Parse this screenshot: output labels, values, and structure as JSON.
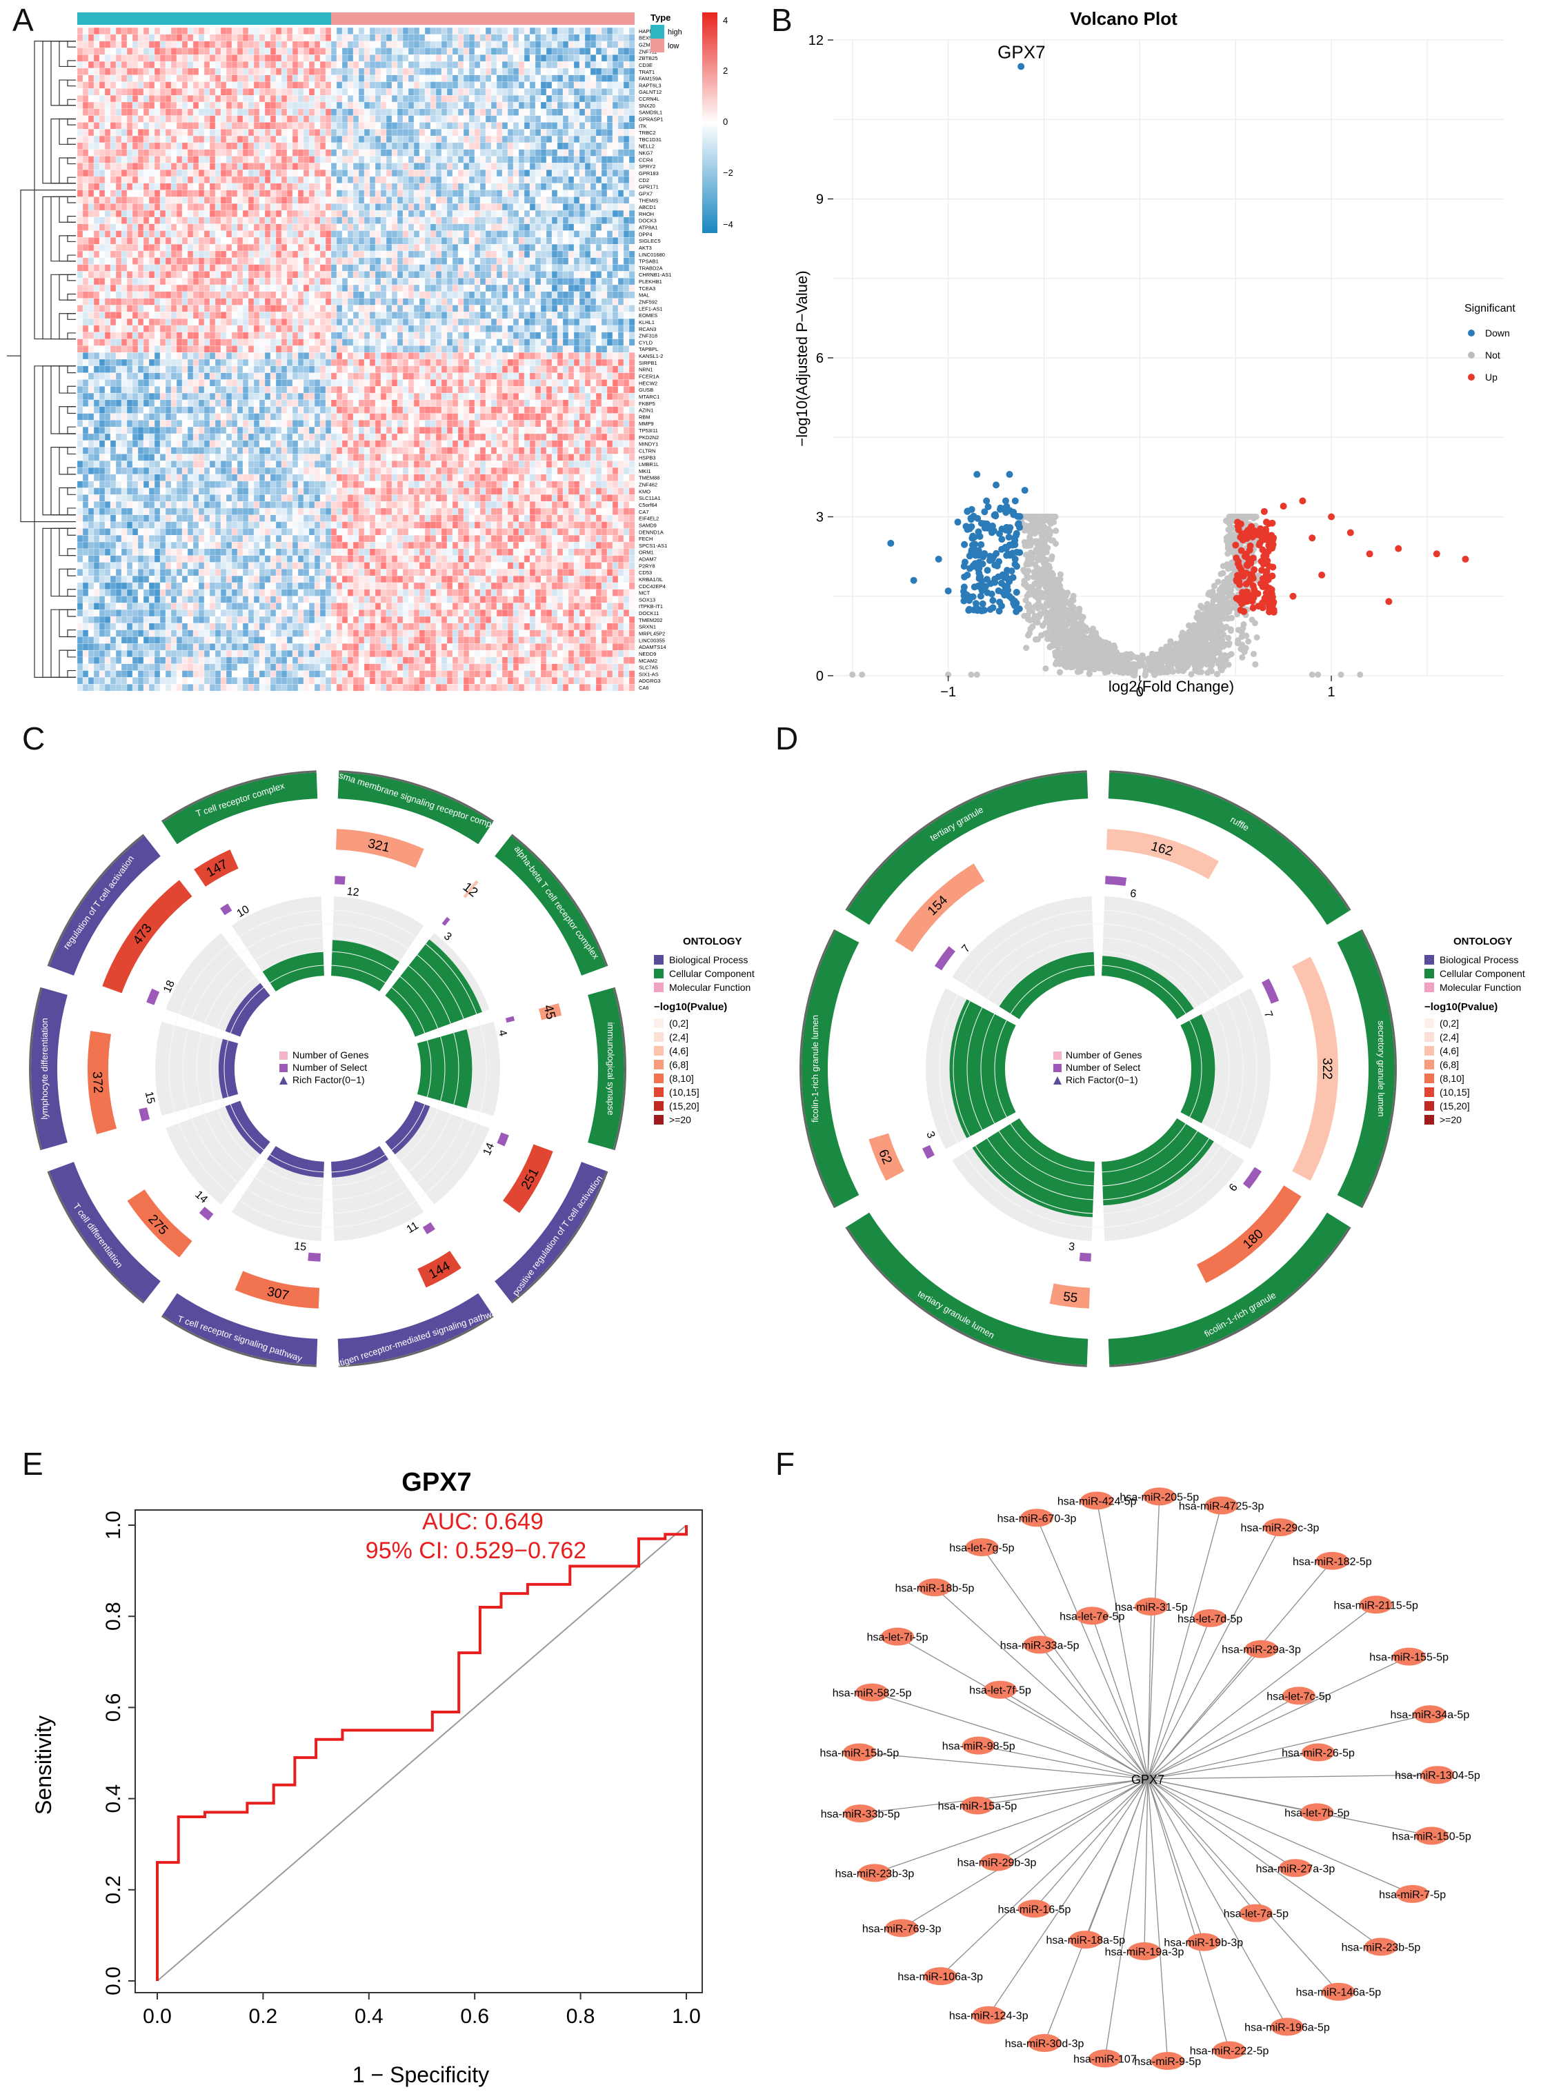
{
  "panels": {
    "A": "A",
    "B": "B",
    "C": "C",
    "D": "D",
    "E": "E",
    "F": "F"
  },
  "heatmap": {
    "legend_type_title": "Type",
    "type_labels": [
      "high",
      "low"
    ],
    "type_colors": {
      "high": "#2db7c4",
      "low": "#f19a9a"
    },
    "scale_ticks": [
      "4",
      "2",
      "0",
      "−2",
      "−4"
    ],
    "genes_top": [
      "HAPNA",
      "BEX5",
      "GZMH",
      "ZNF711",
      "ZBTB25",
      "CD3E",
      "TRAT1",
      "FAM159A",
      "RAPT6L3",
      "GALNT12",
      "CCRN4L",
      "SNX20",
      "SAMD9L1",
      "GPRASP1",
      "ITK",
      "TRBC2",
      "TBC1D31",
      "NELL2",
      "NKG7",
      "CCR4",
      "SPRY2",
      "GPR183",
      "CD2",
      "GPR171",
      "GPX7",
      "THEMIS",
      "ABCD1",
      "RHOH",
      "DOCK3",
      "ATP8A1",
      "DPP4",
      "SIGLEC5",
      "AKT3",
      "LINC01680",
      "TPSAB1",
      "TRABD2A",
      "CHRNB1-AS1",
      "PLEKHB1",
      "TCEA3",
      "MAL",
      "ZNF592",
      "LEF1-AS1",
      "EOMES",
      "KLHL1",
      "RCAN3",
      "ZNF318",
      "CYLD",
      "TAPBPL"
    ],
    "genes_bottom": [
      "KANSL1-2",
      "SIRPB1",
      "NRN1",
      "FCER1A",
      "HECW2",
      "GUSB",
      "MTARC1",
      "FKBP5",
      "AZIN1",
      "RBM",
      "MMP9",
      "TP53I11",
      "PKD2N2",
      "MINDY1",
      "CLTRN",
      "HSPB3",
      "LMBR1L",
      "MKI1",
      "TMEM88",
      "ZNF462",
      "KMO",
      "SLC11A1",
      "C5orf64",
      "CA7",
      "EIF4EL2",
      "SAMD9",
      "DENND1A",
      "FECH",
      "SPCS1-AS1",
      "ORM1",
      "ADAM7",
      "P2RY8",
      "CD53",
      "KRBA1/3L",
      "CDC42EP4",
      "MCT",
      "SOX13",
      "ITPKB-IT1",
      "DOCK11",
      "TMEM202",
      "SRXN1",
      "MRPL45P2",
      "LINC00355",
      "ADAMTS14",
      "NEDD9",
      "MCAM2",
      "SLC7A5",
      "SIX1-AS",
      "ADGRG3",
      "CA6"
    ]
  },
  "volcano": {
    "chart_data": {
      "type": "scatter",
      "title": "Volcano Plot",
      "xlabel": "log2(Fold Change)",
      "ylabel": "−log10(Adjusted P−Value)",
      "xlim": [
        -1.6,
        1.9
      ],
      "ylim": [
        0,
        12
      ],
      "xticks": [
        "−1",
        "0",
        "1"
      ],
      "yticks": [
        "0",
        "3",
        "6",
        "9",
        "12"
      ],
      "legend_title": "Significant",
      "legend": [
        {
          "label": "Down",
          "color": "#2b7bb9"
        },
        {
          "label": "Not",
          "color": "#bdbdbd"
        },
        {
          "label": "Up",
          "color": "#e8382b"
        }
      ],
      "annotation": {
        "label": "GPX7",
        "x": -0.62,
        "y": 11.5
      },
      "down_points": [
        [
          -0.62,
          11.5
        ],
        [
          -1.3,
          2.5
        ],
        [
          -1.18,
          1.8
        ],
        [
          -0.95,
          2.9
        ],
        [
          -0.9,
          3.1
        ],
        [
          -0.85,
          3.8
        ],
        [
          -0.8,
          3.3
        ],
        [
          -0.75,
          3.6
        ],
        [
          -0.7,
          3.3
        ],
        [
          -0.68,
          3.8
        ],
        [
          -0.65,
          3.3
        ],
        [
          -0.6,
          3.5
        ],
        [
          -1.0,
          1.6
        ],
        [
          -0.9,
          1.9
        ],
        [
          -1.05,
          2.2
        ]
      ],
      "up_points": [
        [
          1.0,
          3.0
        ],
        [
          1.1,
          2.7
        ],
        [
          1.2,
          2.3
        ],
        [
          1.35,
          2.4
        ],
        [
          1.55,
          2.3
        ],
        [
          1.7,
          2.2
        ],
        [
          1.3,
          1.4
        ],
        [
          0.85,
          3.3
        ],
        [
          0.75,
          3.2
        ],
        [
          0.65,
          3.1
        ],
        [
          0.9,
          2.6
        ],
        [
          0.95,
          1.9
        ],
        [
          0.8,
          1.5
        ],
        [
          0.7,
          1.2
        ]
      ]
    }
  },
  "circos_c": {
    "legend_title": "ONTOLOGY",
    "legend_items": [
      {
        "label": "Biological Process",
        "color": "#5a4b9c"
      },
      {
        "label": "Cellular Component",
        "color": "#1a8a43"
      },
      {
        "label": "Molecular Function",
        "color": "#f2a2c1"
      }
    ],
    "pvalue_title": "−log10(Pvalue)",
    "pvalue_items": [
      "(0,2]",
      "(2,4]",
      "(4,6]",
      "(6,8]",
      "(8,10]",
      "(10,15]",
      "(15,20]",
      ">=20"
    ],
    "pvalue_colors": [
      "#fdf0ec",
      "#fde0d6",
      "#fcc4ae",
      "#f99b7d",
      "#f2734f",
      "#e04632",
      "#c02a22",
      "#a01c1c"
    ],
    "center_legend": [
      "Number of Genes",
      "Number of Select",
      "Rich Factor(0−1)"
    ],
    "sectors": [
      {
        "term": "plasma membrane signaling receptor complex",
        "ontology": "CC",
        "genes": 321,
        "select": 12,
        "rich": 0.45,
        "pclass": 3
      },
      {
        "term": "alpha-beta T cell receptor complex",
        "ontology": "CC",
        "genes": 12,
        "select": 3,
        "rich": 0.9,
        "pclass": 2
      },
      {
        "term": "immunological synapse",
        "ontology": "CC",
        "genes": 45,
        "select": 4,
        "rich": 0.65,
        "pclass": 3
      },
      {
        "term": "positive regulation of T cell activation",
        "ontology": "BP",
        "genes": 251,
        "select": 14,
        "rich": 0.2,
        "pclass": 5
      },
      {
        "term": "antigen receptor-mediated signaling pathway",
        "ontology": "BP",
        "genes": 144,
        "select": 11,
        "rich": 0.2,
        "pclass": 5
      },
      {
        "term": "T cell receptor signaling pathway",
        "ontology": "BP",
        "genes": 307,
        "select": 15,
        "rich": 0.2,
        "pclass": 4
      },
      {
        "term": "T cell differentiation",
        "ontology": "BP",
        "genes": 275,
        "select": 14,
        "rich": 0.2,
        "pclass": 4
      },
      {
        "term": "lymphocyte differentiation",
        "ontology": "BP",
        "genes": 372,
        "select": 15,
        "rich": 0.2,
        "pclass": 4
      },
      {
        "term": "regulation of T cell activation",
        "ontology": "BP",
        "genes": 473,
        "select": 18,
        "rich": 0.2,
        "pclass": 5
      },
      {
        "term": "T cell receptor complex",
        "ontology": "CC",
        "genes": 147,
        "select": 10,
        "rich": 0.3,
        "pclass": 5
      }
    ]
  },
  "circos_d": {
    "legend_title": "ONTOLOGY",
    "legend_items": [
      {
        "label": "Biological Process",
        "color": "#5a4b9c"
      },
      {
        "label": "Cellular Component",
        "color": "#1a8a43"
      },
      {
        "label": "Molecular Function",
        "color": "#f2a2c1"
      }
    ],
    "pvalue_title": "−log10(Pvalue)",
    "pvalue_items": [
      "(0,2]",
      "(2,4]",
      "(4,6]",
      "(6,8]",
      "(8,10]",
      "(10,15]",
      "(15,20]",
      ">=20"
    ],
    "pvalue_colors": [
      "#fdf0ec",
      "#fde0d6",
      "#fcc4ae",
      "#f99b7d",
      "#f2734f",
      "#e04632",
      "#c02a22",
      "#a01c1c"
    ],
    "center_legend": [
      "Number of Genes",
      "Number of Select",
      "Rich Factor(0−1)"
    ],
    "sectors": [
      {
        "term": "ruffle",
        "ontology": "CC",
        "genes": 162,
        "select": 6,
        "rich": 0.25,
        "pclass": 2
      },
      {
        "term": "secretory granule lumen",
        "ontology": "CC",
        "genes": 322,
        "select": 7,
        "rich": 0.3,
        "pclass": 2
      },
      {
        "term": "ficolin-1-rich granule",
        "ontology": "CC",
        "genes": 180,
        "select": 6,
        "rich": 0.55,
        "pclass": 4
      },
      {
        "term": "tertiary granule lumen",
        "ontology": "CC",
        "genes": 55,
        "select": 3,
        "rich": 0.7,
        "pclass": 3
      },
      {
        "term": "ficolin-1-rich granule lumen",
        "ontology": "CC",
        "genes": 62,
        "select": 3,
        "rich": 0.7,
        "pclass": 3
      },
      {
        "term": "tertiary granule",
        "ontology": "CC",
        "genes": 154,
        "select": 7,
        "rich": 0.3,
        "pclass": 3
      }
    ]
  },
  "roc": {
    "chart_data": {
      "type": "line",
      "title": "GPX7",
      "xlabel": "1 − Specificity",
      "ylabel": "Sensitivity",
      "xlim": [
        0,
        1
      ],
      "ylim": [
        0,
        1
      ],
      "xticks": [
        "0.0",
        "0.2",
        "0.4",
        "0.6",
        "0.8",
        "1.0"
      ],
      "yticks": [
        "0.0",
        "0.2",
        "0.4",
        "0.6",
        "0.8",
        "1.0"
      ],
      "auc_text": "AUC: 0.649",
      "ci_text": "95% CI: 0.529−0.762",
      "points": [
        [
          0,
          0
        ],
        [
          0,
          0.26
        ],
        [
          0.04,
          0.26
        ],
        [
          0.04,
          0.36
        ],
        [
          0.09,
          0.36
        ],
        [
          0.09,
          0.37
        ],
        [
          0.17,
          0.37
        ],
        [
          0.17,
          0.39
        ],
        [
          0.22,
          0.39
        ],
        [
          0.22,
          0.43
        ],
        [
          0.26,
          0.43
        ],
        [
          0.26,
          0.49
        ],
        [
          0.3,
          0.49
        ],
        [
          0.3,
          0.53
        ],
        [
          0.35,
          0.53
        ],
        [
          0.35,
          0.55
        ],
        [
          0.52,
          0.55
        ],
        [
          0.52,
          0.59
        ],
        [
          0.57,
          0.59
        ],
        [
          0.57,
          0.63
        ],
        [
          0.57,
          0.72
        ],
        [
          0.61,
          0.72
        ],
        [
          0.61,
          0.82
        ],
        [
          0.65,
          0.82
        ],
        [
          0.65,
          0.85
        ],
        [
          0.7,
          0.85
        ],
        [
          0.7,
          0.87
        ],
        [
          0.78,
          0.87
        ],
        [
          0.78,
          0.91
        ],
        [
          0.91,
          0.91
        ],
        [
          0.91,
          0.97
        ],
        [
          0.96,
          0.97
        ],
        [
          0.96,
          0.98
        ],
        [
          1.0,
          0.98
        ],
        [
          1.0,
          1.0
        ]
      ]
    }
  },
  "network": {
    "center": "GPX7",
    "outer_nodes": [
      "hsa-miR-205-5p",
      "hsa-miR-4725-3p",
      "hsa-miR-29c-3p",
      "hsa-miR-182-5p",
      "hsa-miR-2115-5p",
      "hsa-miR-155-5p",
      "hsa-miR-34a-5p",
      "hsa-miR-1304-5p",
      "hsa-miR-150-5p",
      "hsa-miR-7-5p",
      "hsa-miR-23b-5p",
      "hsa-miR-146a-5p",
      "hsa-miR-196a-5p",
      "hsa-miR-222-5p",
      "hsa-miR-9-5p",
      "hsa-miR-107",
      "hsa-miR-30d-3p",
      "hsa-miR-124-3p",
      "hsa-miR-106a-3p",
      "hsa-miR-769-3p",
      "hsa-miR-23b-3p",
      "hsa-miR-33b-5p",
      "hsa-miR-15b-5p",
      "hsa-miR-582-5p",
      "hsa-let-7i-5p",
      "hsa-miR-18b-5p",
      "hsa-let-7g-5p",
      "hsa-miR-670-3p",
      "hsa-miR-424-5p"
    ],
    "inner_nodes": [
      "hsa-miR-31-5p",
      "hsa-let-7d-5p",
      "hsa-miR-29a-3p",
      "hsa-let-7c-5p",
      "hsa-miR-26-5p",
      "hsa-let-7b-5p",
      "hsa-miR-27a-3p",
      "hsa-let-7a-5p",
      "hsa-miR-19b-3p",
      "hsa-miR-19a-3p",
      "hsa-miR-18a-5p",
      "hsa-miR-16-5p",
      "hsa-miR-29b-3p",
      "hsa-miR-15a-5p",
      "hsa-miR-98-5p",
      "hsa-let-7f-5p",
      "hsa-miR-33a-5p",
      "hsa-let-7e-5p"
    ],
    "node_color": "#f47e5f"
  }
}
